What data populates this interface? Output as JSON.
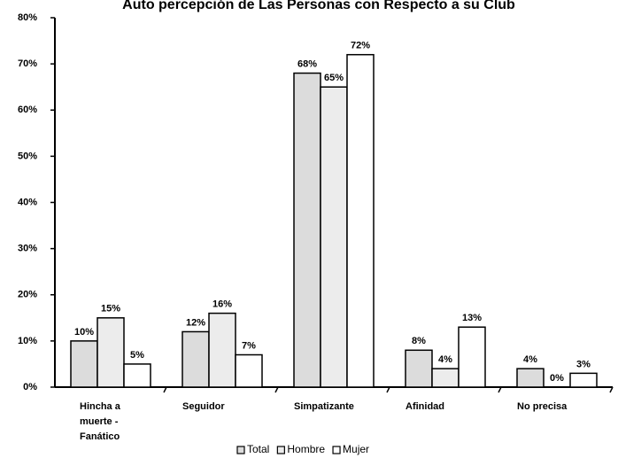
{
  "chart_data": {
    "type": "bar",
    "title": "Auto percepción de Las Personas con Respecto a su Club",
    "categories": [
      "Hincha a muerte - Fanático",
      "Seguidor",
      "Simpatizante",
      "Afinidad",
      "No precisa"
    ],
    "series": [
      {
        "name": "Total",
        "color": "#dcdcdc",
        "values": [
          10,
          12,
          68,
          8,
          4
        ],
        "value_labels": [
          "10%",
          "12%",
          "68%",
          "8%",
          "4%"
        ]
      },
      {
        "name": "Hombre",
        "color": "#ececec",
        "values": [
          15,
          16,
          65,
          4,
          0
        ],
        "value_labels": [
          "15%",
          "16%",
          "65%",
          "4%",
          "0%"
        ]
      },
      {
        "name": "Mujer",
        "color": "#ffffff",
        "values": [
          5,
          7,
          72,
          13,
          3
        ],
        "value_labels": [
          "5%",
          "7%",
          "72%",
          "13%",
          "3%"
        ]
      }
    ],
    "ylim": [
      0,
      80
    ],
    "yticks": [
      {
        "value": 0,
        "label": "0%"
      },
      {
        "value": 10,
        "label": "10%"
      },
      {
        "value": 20,
        "label": "20%"
      },
      {
        "value": 30,
        "label": "30%"
      },
      {
        "value": 40,
        "label": "40%"
      },
      {
        "value": 50,
        "label": "50%"
      },
      {
        "value": 60,
        "label": "60%"
      },
      {
        "value": 70,
        "label": "70%"
      },
      {
        "value": 80,
        "label": "80%"
      }
    ],
    "grid": false,
    "legend": "bottom"
  }
}
